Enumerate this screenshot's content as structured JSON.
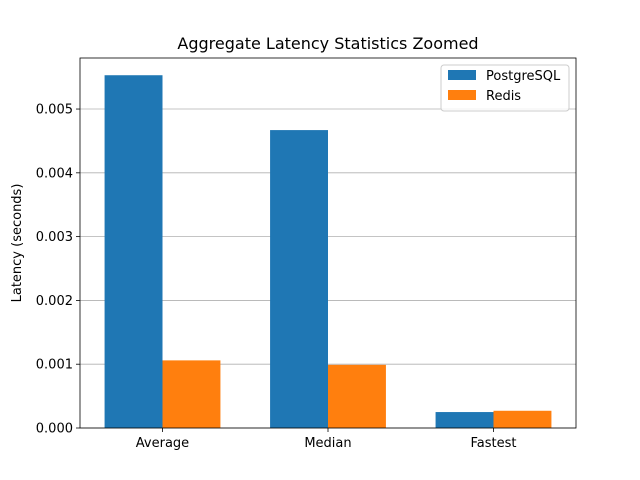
{
  "chart_data": {
    "type": "bar",
    "title": "Aggregate Latency Statistics Zoomed",
    "xlabel": "",
    "ylabel": "Latency (seconds)",
    "categories": [
      "Average",
      "Median",
      "Fastest"
    ],
    "series": [
      {
        "name": "PostgreSQL",
        "color": "#1f77b4",
        "values": [
          0.00553,
          0.00467,
          0.00025
        ]
      },
      {
        "name": "Redis",
        "color": "#ff7f0e",
        "values": [
          0.00106,
          0.00099,
          0.00027
        ]
      }
    ],
    "ylim": [
      0,
      0.0058
    ],
    "yticks": [
      "0.000",
      "0.001",
      "0.002",
      "0.003",
      "0.004",
      "0.005"
    ],
    "grid": "y-major",
    "legend_position": "upper right"
  }
}
